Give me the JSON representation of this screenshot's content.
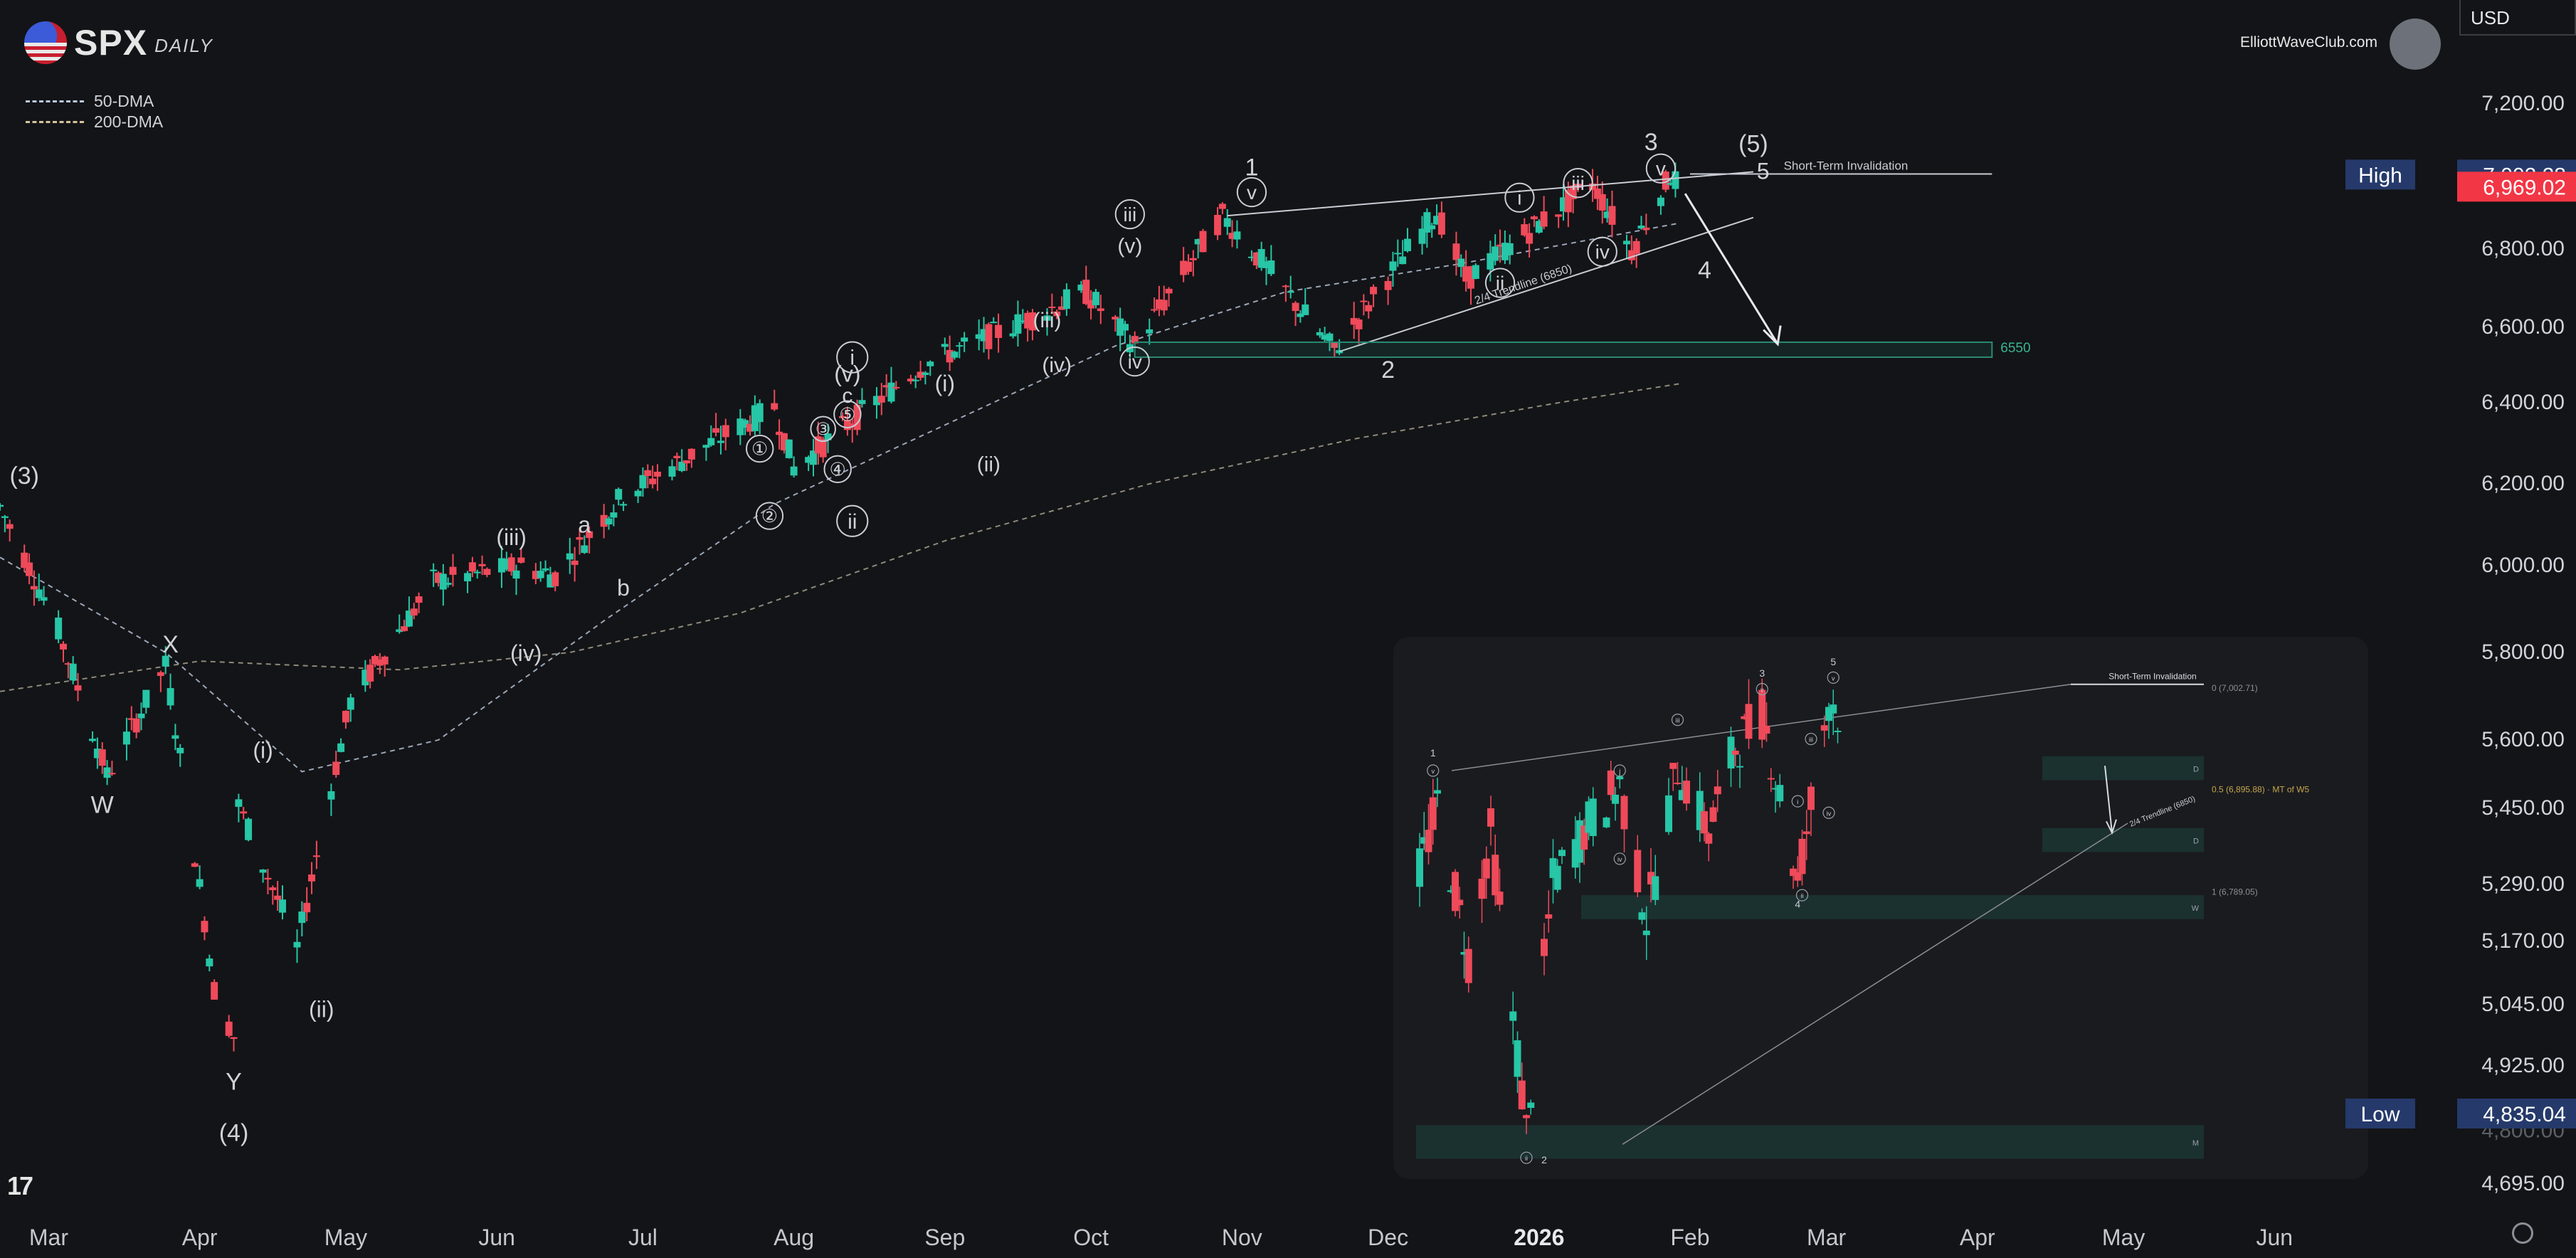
{
  "header": {
    "symbol": "SPX",
    "period": "DAILY",
    "brand_site": "ElliottWaveClub.com",
    "currency": "USD"
  },
  "legend": {
    "ma50": "50-DMA",
    "ma200": "200-DMA"
  },
  "price_scale": {
    "ticks": [
      "7,200.00",
      "6,800.00",
      "6,600.00",
      "6,400.00",
      "6,200.00",
      "6,000.00",
      "5,800.00",
      "5,600.00",
      "5,450.00",
      "5,290.00",
      "5,170.00",
      "5,045.00",
      "4,925.00",
      "4,695.00"
    ],
    "high_label": "High",
    "high_value": "7,002.28",
    "last_value": "6,969.02",
    "low_label": "Low",
    "low_value": "4,835.04",
    "partial_tick": "4,800.00"
  },
  "time_axis": {
    "labels": [
      "Mar",
      "Apr",
      "May",
      "Jun",
      "Jul",
      "Aug",
      "Sep",
      "Oct",
      "Nov",
      "Dec",
      "2026",
      "Feb",
      "Mar",
      "Apr",
      "May",
      "Jun"
    ]
  },
  "annotations": {
    "short_term_invalidation": "Short-Term Invalidation",
    "trendline": "2/4 Trendline (6850)",
    "target": "6550",
    "waves": [
      "(3)",
      "X",
      "W",
      "(i)",
      "Y",
      "(4)",
      "(ii)",
      "(iii)",
      "(iv)",
      "a",
      "b",
      "①",
      "②",
      "③",
      "④",
      "⑤",
      "c",
      "(v)",
      "i",
      "ii",
      "(i)",
      "(ii)",
      "(iii)",
      "(iv)",
      "(v)",
      "iii",
      "iv",
      "1",
      "v",
      "2",
      "i",
      "ii",
      "iii",
      "iv",
      "v",
      "3",
      "4",
      "5",
      "(5)"
    ]
  },
  "inset": {
    "short_term_invalidation": "Short-Term Invalidation",
    "fib_0": "0 (7,002.71)",
    "fib_05": "0.5 (6,895.88) · MT of W5",
    "fib_1": "1 (6,789.05)",
    "trendline": "2/4 Trendline (6850)",
    "zone_labels": [
      "D",
      "D",
      "W",
      "M"
    ],
    "waves": [
      "1",
      "v",
      "i",
      "ii",
      "iii",
      "iv",
      "3",
      "v",
      "i",
      "iii",
      "iv",
      "4",
      "5",
      "v",
      "2",
      "ii"
    ]
  },
  "chart_data": {
    "type": "candlestick",
    "symbol": "SPX",
    "timeframe": "Daily",
    "y_scale": "log",
    "ylim": [
      4640,
      7330
    ],
    "x_range": [
      "2025-02-19",
      "2026-06-22"
    ],
    "key_levels": {
      "high": 7002.28,
      "last": 6969.02,
      "low": 4835.04,
      "target_zone": [
        6520,
        6560
      ],
      "target_label": 6550,
      "trendline_2_4": 6850
    },
    "ohlc_path": [
      [
        "2025-02-19",
        6144
      ],
      [
        "2025-03-03",
        5850
      ],
      [
        "2025-03-13",
        5520
      ],
      [
        "2025-03-25",
        5770
      ],
      [
        "2025-04-04",
        5074
      ],
      [
        "2025-04-08",
        4982
      ],
      [
        "2025-04-09",
        5456
      ],
      [
        "2025-04-21",
        5158
      ],
      [
        "2025-05-02",
        5687
      ],
      [
        "2025-05-19",
        5963
      ],
      [
        "2025-06-06",
        6000
      ],
      [
        "2025-06-13",
        5977
      ],
      [
        "2025-06-27",
        6173
      ],
      [
        "2025-07-28",
        6390
      ],
      [
        "2025-08-01",
        6238
      ],
      [
        "2025-08-28",
        6502
      ],
      [
        "2025-09-30",
        6688
      ],
      [
        "2025-10-10",
        6552
      ],
      [
        "2025-10-28",
        6890
      ],
      [
        "2025-11-20",
        6538
      ],
      [
        "2025-12-11",
        6901
      ],
      [
        "2025-12-17",
        6721
      ],
      [
        "2026-01-12",
        6977
      ],
      [
        "2026-01-20",
        6797
      ],
      [
        "2026-01-28",
        7002
      ],
      [
        "2026-01-30",
        6969
      ]
    ],
    "moving_averages": [
      {
        "name": "50-DMA",
        "points": [
          [
            "2025-02-19",
            6020
          ],
          [
            "2025-03-25",
            5800
          ],
          [
            "2025-04-22",
            5530
          ],
          [
            "2025-05-20",
            5600
          ],
          [
            "2025-06-24",
            5880
          ],
          [
            "2025-07-28",
            6150
          ],
          [
            "2025-09-02",
            6350
          ],
          [
            "2025-10-06",
            6550
          ],
          [
            "2025-11-10",
            6690
          ],
          [
            "2025-12-15",
            6760
          ],
          [
            "2026-01-30",
            6870
          ]
        ]
      },
      {
        "name": "200-DMA",
        "points": [
          [
            "2025-02-19",
            5710
          ],
          [
            "2025-04-01",
            5780
          ],
          [
            "2025-05-12",
            5760
          ],
          [
            "2025-06-16",
            5800
          ],
          [
            "2025-07-21",
            5890
          ],
          [
            "2025-09-01",
            6060
          ],
          [
            "2025-10-13",
            6200
          ],
          [
            "2025-11-24",
            6310
          ],
          [
            "2026-01-05",
            6400
          ],
          [
            "2026-01-30",
            6450
          ]
        ]
      }
    ]
  },
  "colors": {
    "background": "#131417",
    "up": "#26c6a6",
    "down": "#ef4a5a",
    "annotation": "#c9ccd4",
    "target_zone": "#2a6b5a",
    "high_badge": "#253a6b",
    "last_badge": "#f23645",
    "low_badge": "#253a6b"
  }
}
